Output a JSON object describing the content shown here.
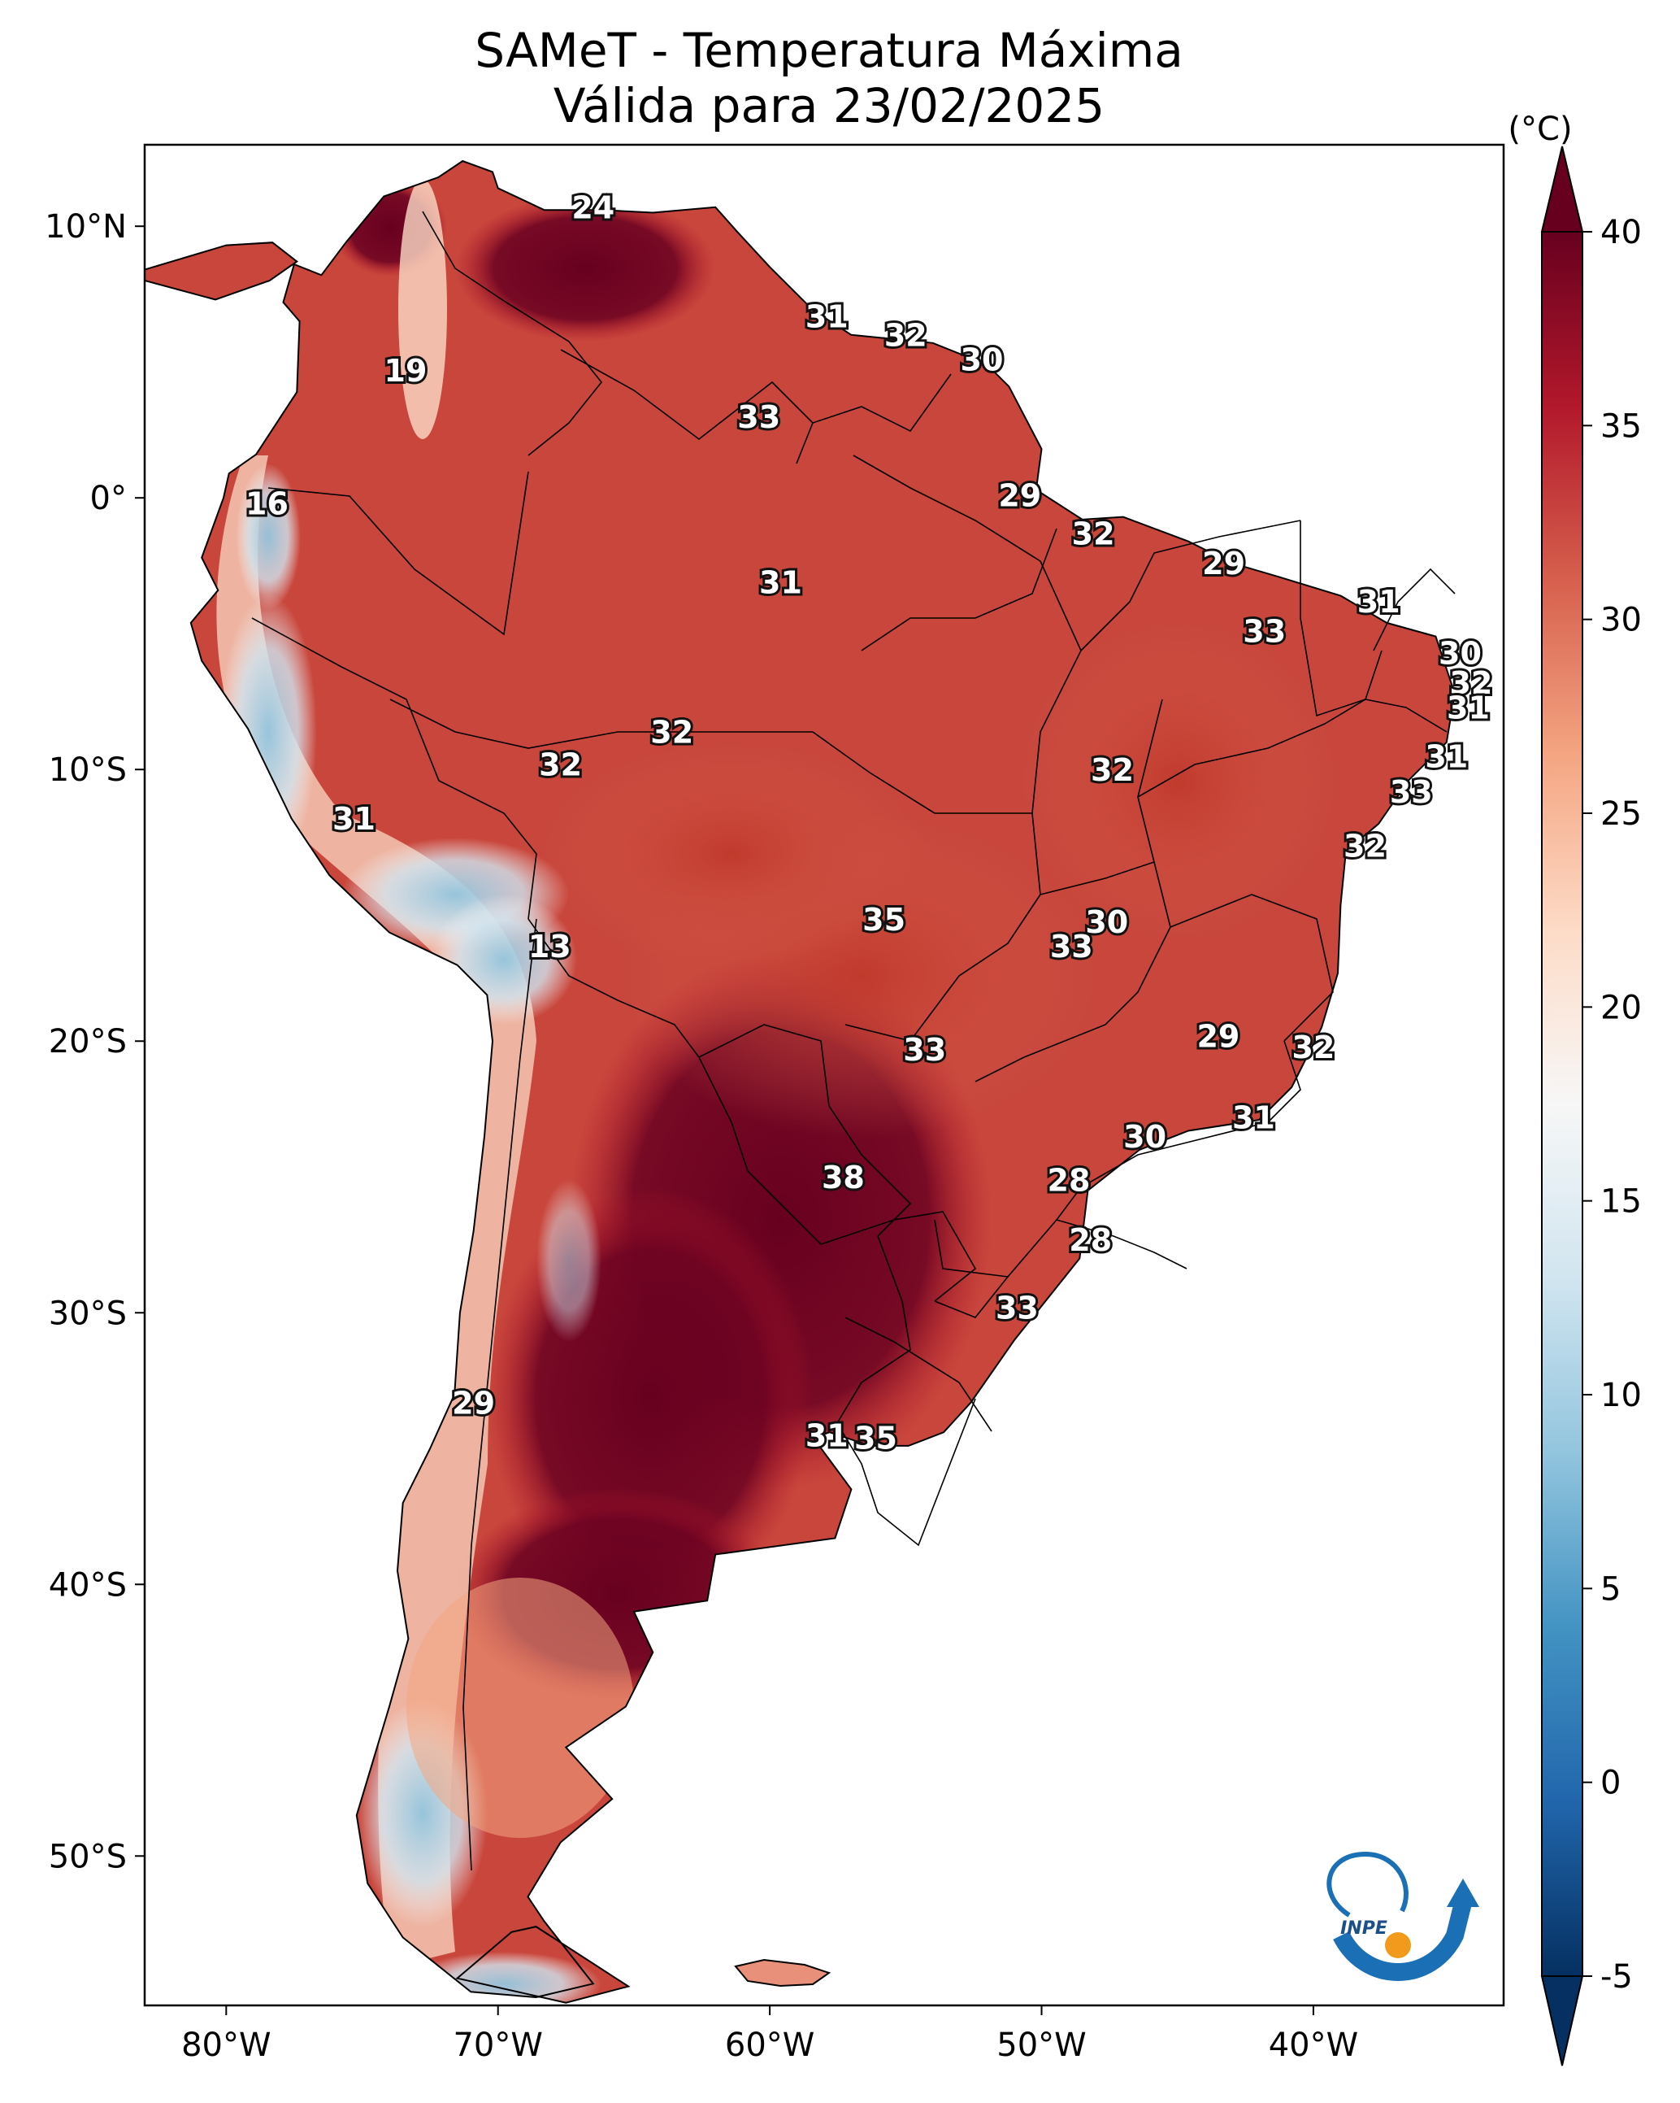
{
  "title": {
    "line1": "SAMeT - Temperatura Máxima",
    "line2": "Válida para 23/02/2025"
  },
  "axes": {
    "lat_ticks": [
      {
        "label": "10°N",
        "lat": 10
      },
      {
        "label": "0°",
        "lat": 0
      },
      {
        "label": "10°S",
        "lat": -10
      },
      {
        "label": "20°S",
        "lat": -20
      },
      {
        "label": "30°S",
        "lat": -30
      },
      {
        "label": "40°S",
        "lat": -40
      },
      {
        "label": "50°S",
        "lat": -50
      }
    ],
    "lon_ticks": [
      {
        "label": "80°W",
        "lon": -80
      },
      {
        "label": "70°W",
        "lon": -70
      },
      {
        "label": "60°W",
        "lon": -60
      },
      {
        "label": "50°W",
        "lon": -50
      },
      {
        "label": "40°W",
        "lon": -40
      }
    ],
    "lon_range": [
      -83,
      -33
    ],
    "lat_range": [
      -55.5,
      13
    ]
  },
  "colorbar": {
    "unit": "(°C)",
    "ticks": [
      "-5",
      "0",
      "5",
      "10",
      "15",
      "20",
      "25",
      "30",
      "35",
      "40"
    ],
    "range": [
      -5,
      40
    ],
    "extend": "both",
    "colors": [
      "#053061",
      "#2166ac",
      "#4393c3",
      "#92c5de",
      "#d1e5f0",
      "#f7f7f7",
      "#fddbc7",
      "#f4a582",
      "#d6604d",
      "#b2182b",
      "#67001f"
    ]
  },
  "map_labels": [
    {
      "text": "24",
      "lon": -66.5,
      "lat": 10.6
    },
    {
      "text": "19",
      "lon": -73.4,
      "lat": 4.6
    },
    {
      "text": "16",
      "lon": -78.5,
      "lat": -0.3
    },
    {
      "text": "31",
      "lon": -57.9,
      "lat": 6.6
    },
    {
      "text": "32",
      "lon": -55.0,
      "lat": 5.9
    },
    {
      "text": "30",
      "lon": -52.2,
      "lat": 5.0
    },
    {
      "text": "33",
      "lon": -60.4,
      "lat": 2.9
    },
    {
      "text": "29",
      "lon": -50.8,
      "lat": 0.0
    },
    {
      "text": "32",
      "lon": -48.1,
      "lat": -1.4
    },
    {
      "text": "31",
      "lon": -59.6,
      "lat": -3.2
    },
    {
      "text": "29",
      "lon": -43.3,
      "lat": -2.5
    },
    {
      "text": "31",
      "lon": -37.6,
      "lat": -3.9
    },
    {
      "text": "33",
      "lon": -41.8,
      "lat": -5.0
    },
    {
      "text": "30",
      "lon": -34.6,
      "lat": -5.8
    },
    {
      "text": "32",
      "lon": -34.2,
      "lat": -6.9
    },
    {
      "text": "31",
      "lon": -34.3,
      "lat": -7.8
    },
    {
      "text": "32",
      "lon": -63.6,
      "lat": -8.7
    },
    {
      "text": "32",
      "lon": -67.7,
      "lat": -9.9
    },
    {
      "text": "32",
      "lon": -47.4,
      "lat": -10.1
    },
    {
      "text": "31",
      "lon": -35.1,
      "lat": -9.6
    },
    {
      "text": "33",
      "lon": -36.4,
      "lat": -10.9
    },
    {
      "text": "31",
      "lon": -75.3,
      "lat": -11.9
    },
    {
      "text": "32",
      "lon": -38.1,
      "lat": -12.9
    },
    {
      "text": "35",
      "lon": -55.8,
      "lat": -15.6
    },
    {
      "text": "30",
      "lon": -47.6,
      "lat": -15.7
    },
    {
      "text": "33",
      "lon": -48.9,
      "lat": -16.6
    },
    {
      "text": "13",
      "lon": -68.1,
      "lat": -16.6
    },
    {
      "text": "29",
      "lon": -43.5,
      "lat": -19.9
    },
    {
      "text": "32",
      "lon": -40.0,
      "lat": -20.3
    },
    {
      "text": "33",
      "lon": -54.3,
      "lat": -20.4
    },
    {
      "text": "31",
      "lon": -42.2,
      "lat": -22.9
    },
    {
      "text": "30",
      "lon": -46.2,
      "lat": -23.6
    },
    {
      "text": "38",
      "lon": -57.3,
      "lat": -25.1
    },
    {
      "text": "28",
      "lon": -49.0,
      "lat": -25.2
    },
    {
      "text": "28",
      "lon": -48.2,
      "lat": -27.4
    },
    {
      "text": "33",
      "lon": -50.9,
      "lat": -29.9
    },
    {
      "text": "29",
      "lon": -70.9,
      "lat": -33.4
    },
    {
      "text": "31",
      "lon": -57.9,
      "lat": -34.6
    },
    {
      "text": "35",
      "lon": -56.1,
      "lat": -34.7
    }
  ],
  "logo": {
    "text": "INPE"
  }
}
